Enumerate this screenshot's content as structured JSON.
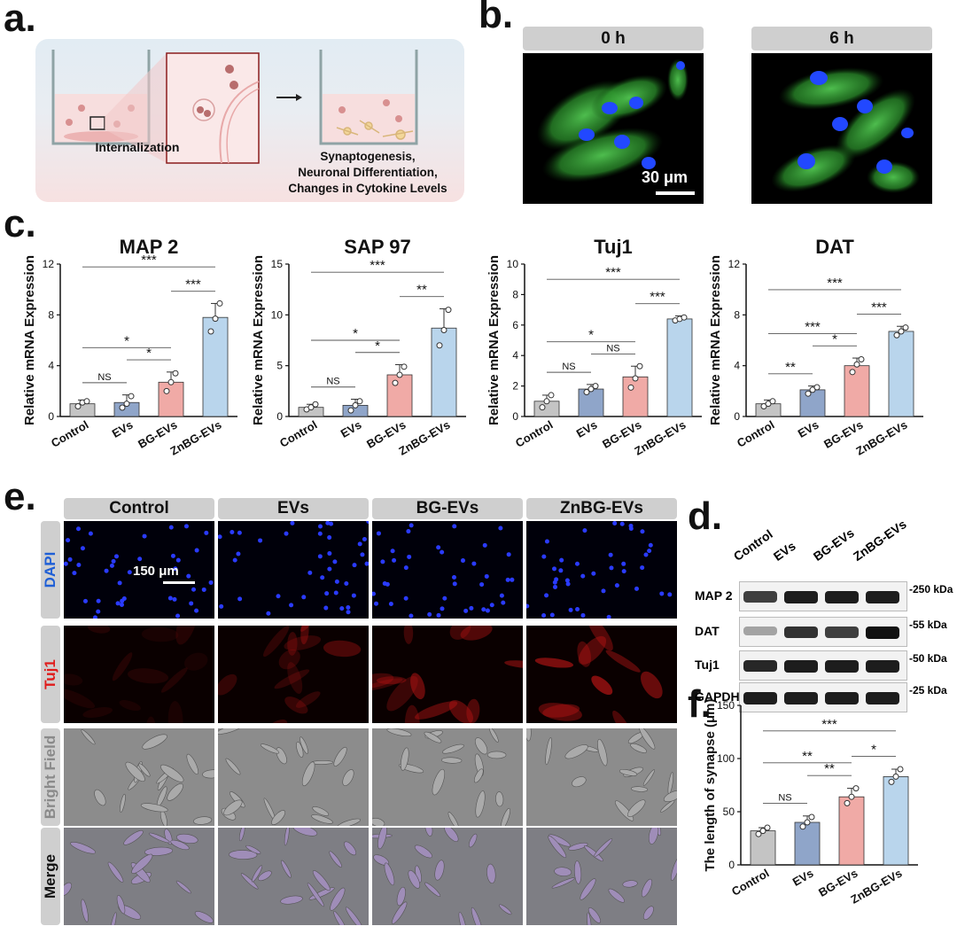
{
  "panels": {
    "a": "a.",
    "b": "b.",
    "c": "c.",
    "d": "d.",
    "e": "e.",
    "f": "f."
  },
  "schematic": {
    "internalization": "Internalization",
    "outcome": [
      "Synaptogenesis,",
      "Neuronal Differentiation,",
      "Changes in Cytokine Levels"
    ]
  },
  "panel_b": {
    "timepoints": [
      "0 h",
      "6 h"
    ],
    "scale_bar": "30 μm"
  },
  "panel_e": {
    "groups": [
      "Control",
      "EVs",
      "BG-EVs",
      "ZnBG-EVs"
    ],
    "rows": [
      "DAPI",
      "Tuj1",
      "Bright Field",
      "Merge"
    ],
    "row_colors": [
      "#1f5fd6",
      "#e01b1b",
      "#8a8a8a",
      "#111111"
    ],
    "scale_bar": "150 μm"
  },
  "panel_d": {
    "groups": [
      "Control",
      "EVs",
      "BG-EVs",
      "ZnBG-EVs"
    ],
    "proteins": [
      "MAP 2",
      "DAT",
      "Tuj1",
      "GAPDH"
    ],
    "sizes": [
      "250 kDa",
      "55 kDa",
      "50 kDa",
      "25 kDa"
    ],
    "band_intensity": [
      [
        0.8,
        0.95,
        0.95,
        0.95
      ],
      [
        0.35,
        0.85,
        0.8,
        1.0
      ],
      [
        0.9,
        0.95,
        0.95,
        0.95
      ],
      [
        0.95,
        0.95,
        0.95,
        0.95
      ]
    ]
  },
  "colors": {
    "Control": "#c4c4c4",
    "EVs": "#8fa5c9",
    "BG-EVs": "#f0aaa6",
    "ZnBG-EVs": "#b9d5ec"
  },
  "chart_data": [
    {
      "type": "bar",
      "title": "MAP 2",
      "ylabel": "Relative mRNA Expression",
      "categories": [
        "Control",
        "EVs",
        "BG-EVs",
        "ZnBG-EVs"
      ],
      "values": [
        1.0,
        1.1,
        2.7,
        7.8
      ],
      "errors": [
        0.3,
        0.6,
        0.8,
        1.1
      ],
      "points": [
        [
          0.8,
          1.1,
          1.2
        ],
        [
          0.7,
          1.0,
          1.6
        ],
        [
          2.0,
          2.7,
          3.4
        ],
        [
          6.7,
          7.7,
          8.9
        ]
      ],
      "ylim": [
        0,
        12
      ],
      "yticks": [
        0,
        4,
        8,
        12
      ],
      "sig": [
        {
          "a": 0,
          "b": 1,
          "label": "NS"
        },
        {
          "a": 2,
          "b": 3,
          "label": "***"
        },
        {
          "a": 1,
          "b": 2,
          "label": "*"
        },
        {
          "a": 0,
          "b": 2,
          "label": "*"
        },
        {
          "a": 0,
          "b": 3,
          "label": "***"
        }
      ]
    },
    {
      "type": "bar",
      "title": "SAP 97",
      "ylabel": "Relative mRNA Expression",
      "categories": [
        "Control",
        "EVs",
        "BG-EVs",
        "ZnBG-EVs"
      ],
      "values": [
        0.9,
        1.1,
        4.1,
        8.7
      ],
      "errors": [
        0.3,
        0.6,
        1.0,
        1.9
      ],
      "points": [
        [
          0.7,
          0.9,
          1.2
        ],
        [
          0.6,
          1.1,
          1.5
        ],
        [
          3.3,
          4.1,
          4.9
        ],
        [
          7.0,
          8.5,
          10.5
        ]
      ],
      "ylim": [
        0,
        15
      ],
      "yticks": [
        0,
        5,
        10,
        15
      ],
      "sig": [
        {
          "a": 0,
          "b": 1,
          "label": "NS"
        },
        {
          "a": 2,
          "b": 3,
          "label": "**"
        },
        {
          "a": 1,
          "b": 2,
          "label": "*"
        },
        {
          "a": 0,
          "b": 2,
          "label": "*"
        },
        {
          "a": 0,
          "b": 3,
          "label": "***"
        }
      ]
    },
    {
      "type": "bar",
      "title": "Tuj1",
      "ylabel": "Relative mRNA Expression",
      "categories": [
        "Control",
        "EVs",
        "BG-EVs",
        "ZnBG-EVs"
      ],
      "values": [
        1.0,
        1.8,
        2.6,
        6.4
      ],
      "errors": [
        0.4,
        0.3,
        0.7,
        0.2
      ],
      "points": [
        [
          0.6,
          1.0,
          1.4
        ],
        [
          1.6,
          1.8,
          2.0
        ],
        [
          1.9,
          2.5,
          3.3
        ],
        [
          6.3,
          6.4,
          6.5
        ]
      ],
      "ylim": [
        0,
        10
      ],
      "yticks": [
        0,
        2,
        4,
        6,
        8,
        10
      ],
      "sig": [
        {
          "a": 0,
          "b": 1,
          "label": "NS"
        },
        {
          "a": 1,
          "b": 2,
          "label": "NS"
        },
        {
          "a": 2,
          "b": 3,
          "label": "***"
        },
        {
          "a": 0,
          "b": 2,
          "label": "*"
        },
        {
          "a": 0,
          "b": 3,
          "label": "***"
        }
      ]
    },
    {
      "type": "bar",
      "title": "DAT",
      "ylabel": "Relative mRNA Expression",
      "categories": [
        "Control",
        "EVs",
        "BG-EVs",
        "ZnBG-EVs"
      ],
      "values": [
        1.0,
        2.1,
        4.0,
        6.7
      ],
      "errors": [
        0.3,
        0.3,
        0.6,
        0.4
      ],
      "points": [
        [
          0.8,
          1.0,
          1.2
        ],
        [
          1.8,
          2.1,
          2.3
        ],
        [
          3.5,
          4.1,
          4.5
        ],
        [
          6.4,
          6.7,
          7.0
        ]
      ],
      "ylim": [
        0,
        12
      ],
      "yticks": [
        0,
        4,
        8,
        12
      ],
      "sig": [
        {
          "a": 0,
          "b": 1,
          "label": "**"
        },
        {
          "a": 1,
          "b": 2,
          "label": "*"
        },
        {
          "a": 2,
          "b": 3,
          "label": "***"
        },
        {
          "a": 0,
          "b": 2,
          "label": "***"
        },
        {
          "a": 0,
          "b": 3,
          "label": "***"
        }
      ]
    },
    {
      "type": "bar",
      "title": "",
      "ylabel": "The length of synapse (μm)",
      "categories": [
        "Control",
        "EVs",
        "BG-EVs",
        "ZnBG-EVs"
      ],
      "values": [
        32,
        40,
        64,
        83
      ],
      "errors": [
        3,
        6,
        8,
        7
      ],
      "points": [
        [
          29,
          32,
          35
        ],
        [
          36,
          40,
          45
        ],
        [
          58,
          64,
          72
        ],
        [
          78,
          83,
          90
        ]
      ],
      "ylim": [
        0,
        150
      ],
      "yticks": [
        0,
        50,
        100,
        150
      ],
      "sig": [
        {
          "a": 0,
          "b": 1,
          "label": "NS"
        },
        {
          "a": 1,
          "b": 2,
          "label": "**"
        },
        {
          "a": 2,
          "b": 3,
          "label": "*"
        },
        {
          "a": 0,
          "b": 2,
          "label": "**"
        },
        {
          "a": 0,
          "b": 3,
          "label": "***"
        }
      ]
    }
  ]
}
